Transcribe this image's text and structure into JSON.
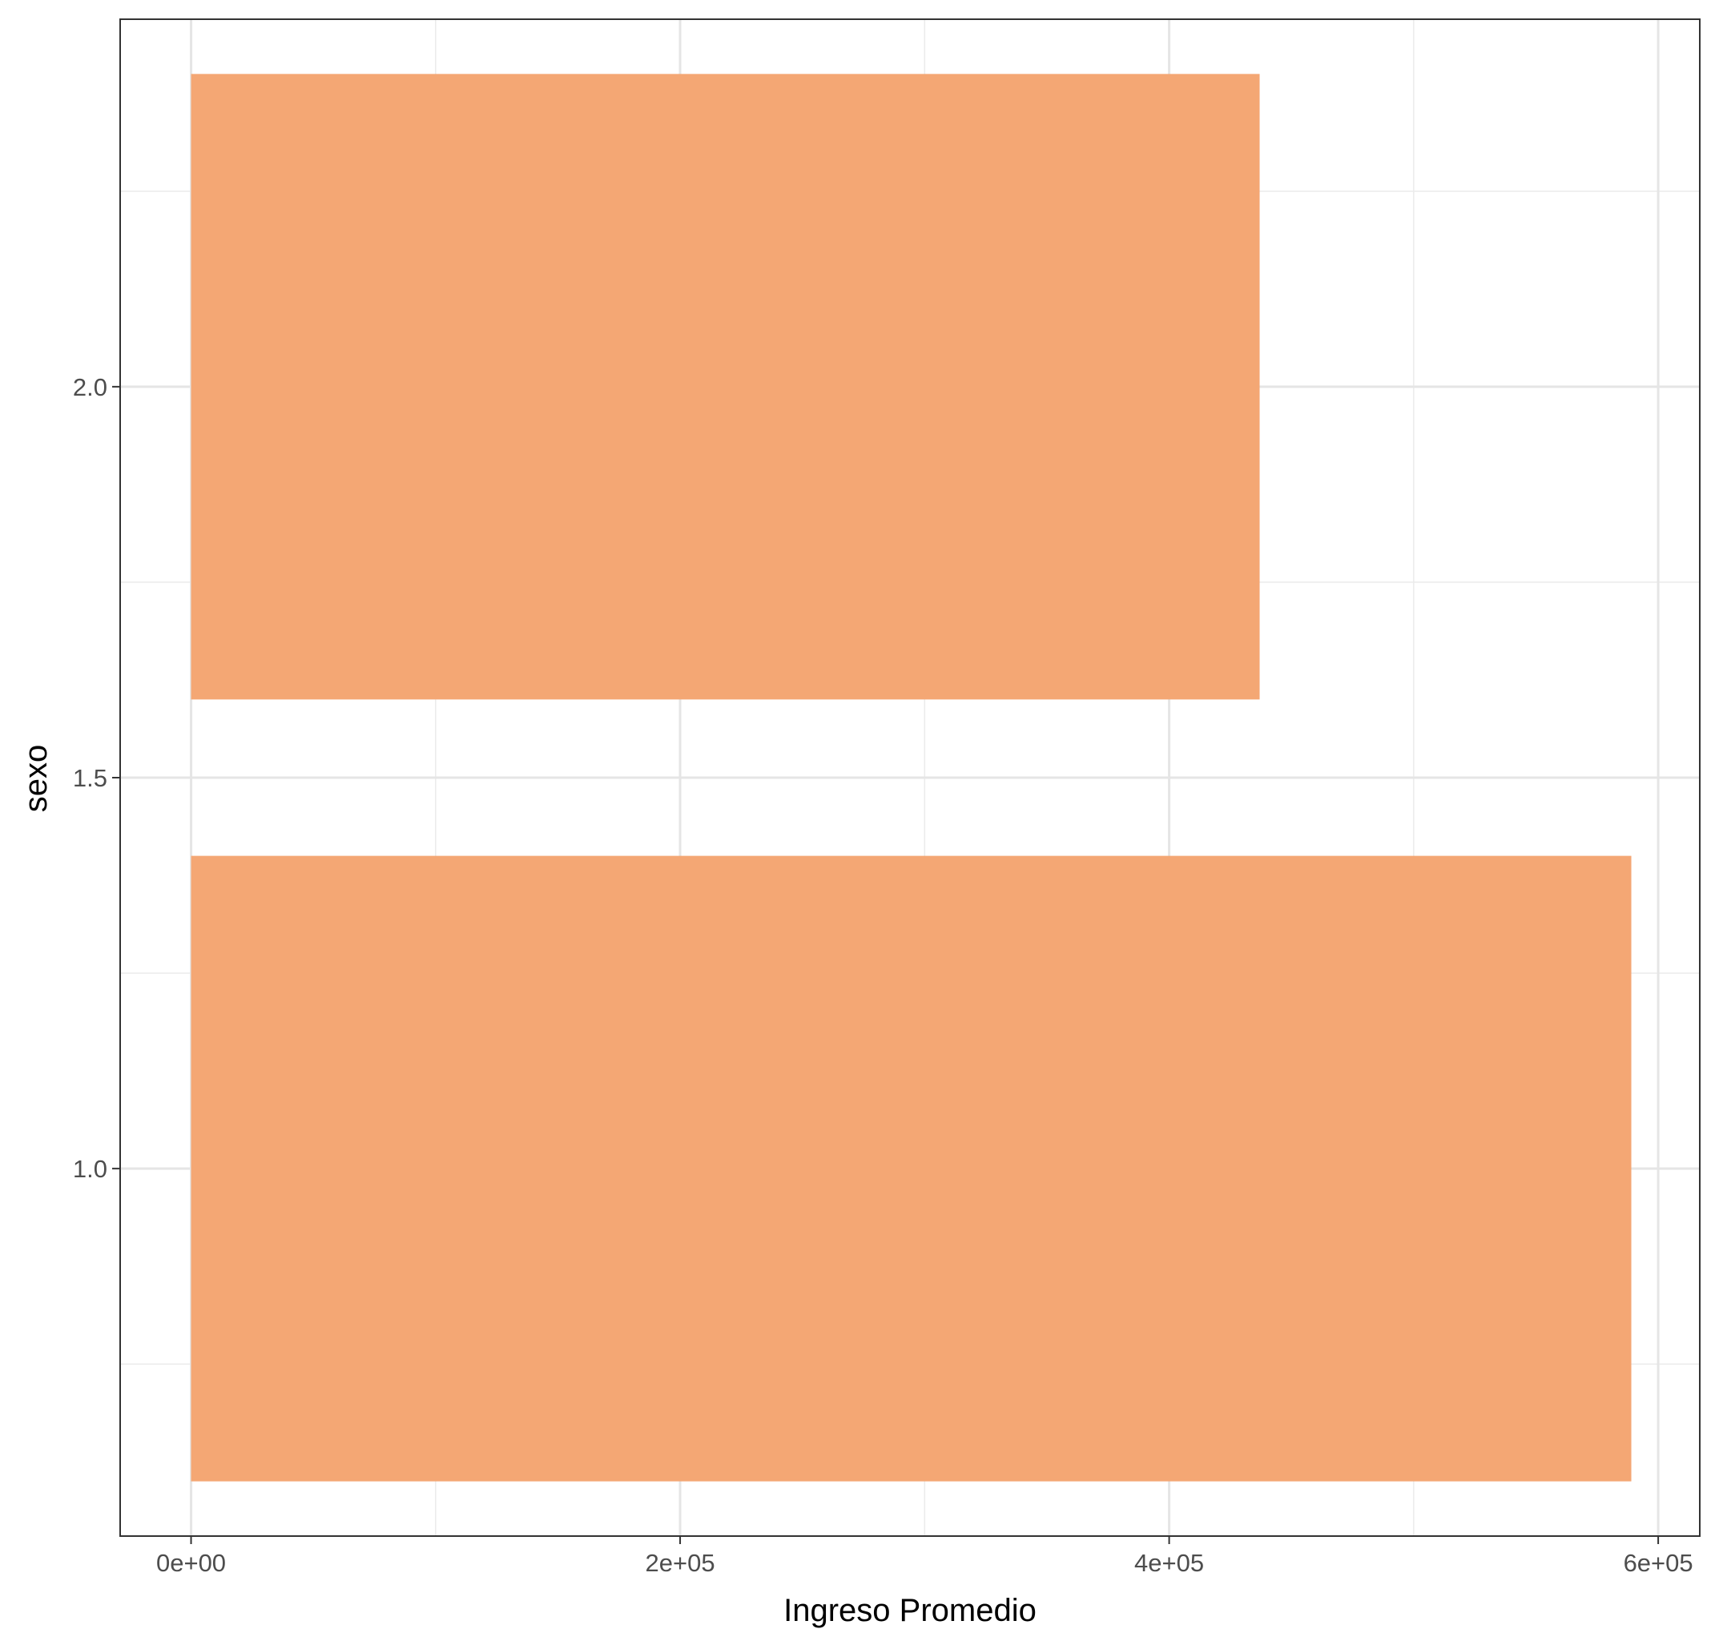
{
  "chart_data": {
    "type": "bar",
    "orientation": "horizontal",
    "xlabel": "Ingreso Promedio",
    "ylabel": "sexo",
    "x_ticks": [
      "0e+00",
      "2e+05",
      "4e+05",
      "6e+05"
    ],
    "x_tick_values": [
      0,
      200000,
      400000,
      600000
    ],
    "y_ticks": [
      "1.0",
      "1.5",
      "2.0"
    ],
    "y_tick_values": [
      1.0,
      1.5,
      2.0
    ],
    "xlim": [
      -29000,
      617000
    ],
    "ylim": [
      0.53,
      2.47
    ],
    "bar_width": 0.8,
    "bars": [
      {
        "category": 1,
        "value": 589000
      },
      {
        "category": 2,
        "value": 437000
      }
    ],
    "bar_color": "#f4a46f",
    "grid": true,
    "legend": "none"
  }
}
